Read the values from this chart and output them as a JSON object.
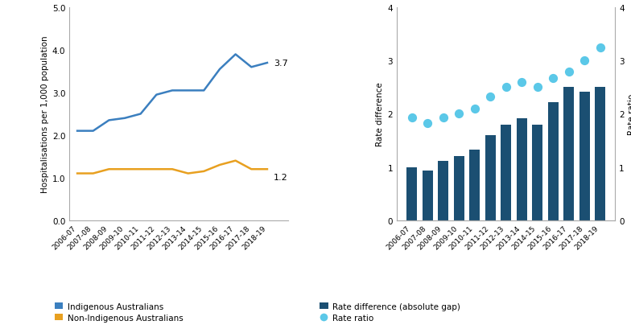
{
  "years": [
    "2006-07",
    "2007-08",
    "2008-09",
    "2009-10",
    "2010-11",
    "2011-12",
    "2012-13",
    "2013-14",
    "2014-15",
    "2015-16",
    "2016-17",
    "2017-18",
    "2018-19"
  ],
  "indigenous": [
    2.1,
    2.1,
    2.35,
    2.4,
    2.5,
    2.95,
    3.05,
    3.05,
    3.05,
    3.55,
    3.9,
    3.6,
    3.7
  ],
  "non_indigenous": [
    1.1,
    1.1,
    1.2,
    1.2,
    1.2,
    1.2,
    1.2,
    1.1,
    1.15,
    1.3,
    1.4,
    1.2,
    1.2
  ],
  "indigenous_label": "3.7",
  "non_indigenous_label": "1.2",
  "rate_difference": [
    1.0,
    0.93,
    1.12,
    1.2,
    1.32,
    1.6,
    1.8,
    1.92,
    1.8,
    2.22,
    2.5,
    2.42,
    2.5
  ],
  "rate_ratio": [
    1.93,
    1.83,
    1.93,
    2.0,
    2.1,
    2.33,
    2.5,
    2.6,
    2.5,
    2.67,
    2.8,
    3.0,
    3.25
  ],
  "line_color_indigenous": "#3B7FBF",
  "line_color_non_indigenous": "#E8A020",
  "bar_color": "#1B4F72",
  "dot_color": "#5BC8E8",
  "left_ylabel": "Hospitalisations per 1,000 population",
  "left_ylim": [
    0.0,
    5.0
  ],
  "left_yticks": [
    0.0,
    1.0,
    2.0,
    3.0,
    4.0,
    5.0
  ],
  "right_ylabel_left": "Rate difference",
  "right_ylabel_right": "Rate ratio",
  "right_ylim": [
    0,
    4
  ],
  "right_yticks": [
    0,
    1,
    2,
    3,
    4
  ],
  "legend_left": [
    {
      "label": "Indigenous Australians",
      "color": "#3B7FBF"
    },
    {
      "label": "Non-Indigenous Australians",
      "color": "#E8A020"
    }
  ],
  "legend_right": [
    {
      "label": "Rate difference (absolute gap)",
      "color": "#1B4F72"
    },
    {
      "label": "Rate ratio",
      "color": "#5BC8E8"
    }
  ]
}
